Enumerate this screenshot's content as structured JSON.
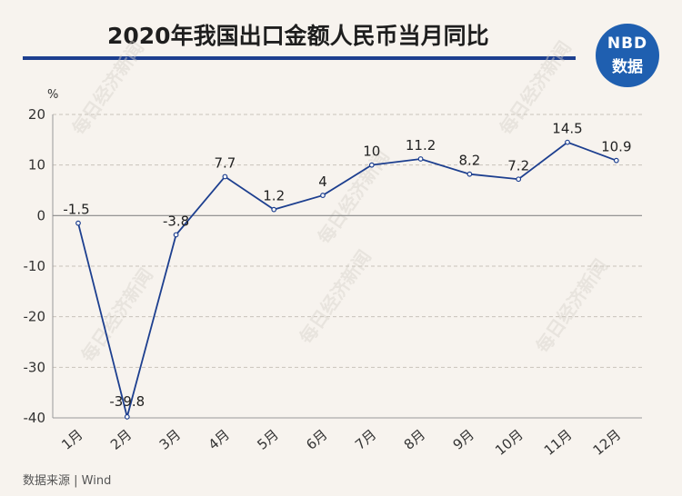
{
  "header": {
    "title": "2020年我国出口金额人民币当月同比"
  },
  "logo": {
    "line1": "NBD",
    "line2": "数据"
  },
  "watermark": "每日经济新闻",
  "footer": {
    "source": "数据来源 | Wind"
  },
  "colors": {
    "line": "#1d3f8f",
    "title_rule": "#1d3f8f",
    "logo_bg": "#1f5fb0",
    "background": "#f7f3ee"
  },
  "chart_data": {
    "type": "line",
    "title": "2020年我国出口金额人民币当月同比",
    "ylabel": "%",
    "xlabel": "",
    "categories": [
      "1月",
      "2月",
      "3月",
      "4月",
      "5月",
      "6月",
      "7月",
      "8月",
      "9月",
      "10月",
      "11月",
      "12月"
    ],
    "series": [
      {
        "values": [
          -1.5,
          -39.8,
          -3.8,
          7.7,
          1.2,
          4,
          10,
          11.2,
          8.2,
          7.2,
          14.5,
          10.9
        ]
      }
    ],
    "data_labels": [
      "-1.5",
      "-39.8",
      "-3.8",
      "7.7",
      "1.2",
      "4",
      "10",
      "11.2",
      "8.2",
      "7.2",
      "14.5",
      "10.9"
    ],
    "ylim": [
      -40,
      20
    ],
    "yticks": [
      20,
      10,
      0,
      -10,
      -20,
      -30,
      -40
    ],
    "grid": true,
    "legend": "none"
  }
}
